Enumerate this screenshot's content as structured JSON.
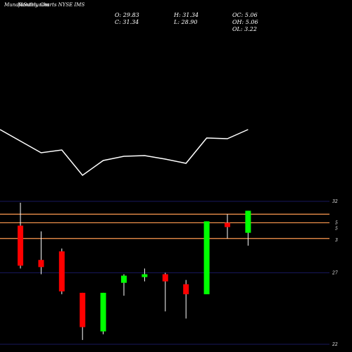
{
  "header": {
    "watermark": "MunafaSutra.com",
    "title": "Monthly Charts NYSE IMS"
  },
  "ohlc": {
    "open_label": "O: 29.83",
    "high_label": "H: 31.34",
    "oc_label": "OC: 5.06",
    "close_label": "C: 31.34",
    "low_label": "L: 28.90",
    "oh_label": "OH: 5.06",
    "ol_label": "OL: 3.22"
  },
  "colors": {
    "background": "#000000",
    "up": "#00ff00",
    "down": "#ff0000",
    "wick": "#ffffff",
    "line": "#ffffff",
    "grid": "#1f1f7a",
    "level": "#ff9a50"
  },
  "chart_data": {
    "type": "candlestick",
    "y_axis": {
      "ticks": [
        {
          "value": 32,
          "label": "32"
        },
        {
          "value": 27,
          "label": "27"
        },
        {
          "value": 22,
          "label": "22"
        }
      ],
      "level_labels": [
        {
          "value": 30.5,
          "label": "5"
        },
        {
          "value": 30.1,
          "label": "5"
        },
        {
          "value": 29.3,
          "label": "3"
        }
      ],
      "ylim": [
        22,
        32
      ]
    },
    "levels": [
      31.1,
      30.5,
      29.4
    ],
    "candles": [
      {
        "open": 30.3,
        "high": 31.9,
        "low": 27.3,
        "close": 27.5
      },
      {
        "open": 27.9,
        "high": 29.9,
        "low": 26.9,
        "close": 27.4
      },
      {
        "open": 28.5,
        "high": 28.7,
        "low": 25.5,
        "close": 25.7
      },
      {
        "open": 25.6,
        "high": 25.6,
        "low": 22.3,
        "close": 23.2
      },
      {
        "open": 22.9,
        "high": 25.6,
        "low": 22.7,
        "close": 25.6
      },
      {
        "open": 26.3,
        "high": 26.9,
        "low": 25.4,
        "close": 26.8
      },
      {
        "open": 26.7,
        "high": 27.3,
        "low": 26.4,
        "close": 26.9
      },
      {
        "open": 26.9,
        "high": 27.0,
        "low": 24.3,
        "close": 26.4
      },
      {
        "open": 26.2,
        "high": 26.5,
        "low": 23.8,
        "close": 25.5
      },
      {
        "open": 25.5,
        "high": 30.6,
        "low": 25.5,
        "close": 30.6
      },
      {
        "open": 30.5,
        "high": 31.1,
        "low": 29.4,
        "close": 30.2
      },
      {
        "open": 29.8,
        "high": 31.34,
        "low": 28.9,
        "close": 31.34
      }
    ],
    "overlay_line": {
      "values": [
        124,
        157,
        153,
        189,
        168,
        162,
        161,
        166,
        172,
        136,
        137,
        124
      ],
      "ylim": [
        0,
        200
      ]
    }
  }
}
